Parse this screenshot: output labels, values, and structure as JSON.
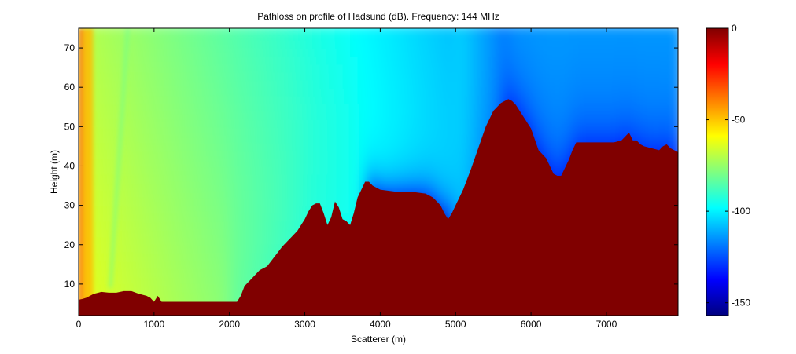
{
  "chart_data": {
    "type": "heatmap",
    "title": "Pathloss on profile of Hadsund (dB). Frequency: 144 MHz",
    "xlabel": "Scatterer (m)",
    "ylabel": "Height (m)",
    "xlim": [
      0,
      7950
    ],
    "ylim": [
      2,
      75
    ],
    "xticks": [
      0,
      1000,
      2000,
      3000,
      4000,
      5000,
      6000,
      7000
    ],
    "yticks": [
      10,
      20,
      30,
      40,
      50,
      60,
      70
    ],
    "colorbar": {
      "colormap": "jet",
      "range": [
        -157,
        0
      ],
      "ticks": [
        0,
        -50,
        -100,
        -150
      ],
      "terrain_color": "#800000"
    },
    "terrain_profile": {
      "x": [
        0,
        50,
        100,
        200,
        300,
        400,
        500,
        600,
        700,
        800,
        900,
        950,
        1000,
        1050,
        1100,
        1200,
        1500,
        1800,
        2000,
        2100,
        2150,
        2200,
        2250,
        2300,
        2400,
        2500,
        2600,
        2700,
        2800,
        2900,
        3000,
        3050,
        3100,
        3150,
        3200,
        3250,
        3300,
        3350,
        3400,
        3450,
        3500,
        3550,
        3600,
        3650,
        3700,
        3750,
        3800,
        3850,
        3900,
        4000,
        4200,
        4400,
        4600,
        4700,
        4800,
        4850,
        4900,
        4950,
        5000,
        5100,
        5200,
        5300,
        5400,
        5500,
        5600,
        5700,
        5750,
        5800,
        5850,
        5900,
        6000,
        6100,
        6200,
        6300,
        6350,
        6400,
        6450,
        6500,
        6550,
        6600,
        6700,
        6800,
        6900,
        7000,
        7100,
        7200,
        7300,
        7350,
        7400,
        7450,
        7500,
        7600,
        7700,
        7750,
        7800,
        7850,
        7950
      ],
      "height": [
        6,
        6.2,
        6.5,
        7.5,
        8,
        7.8,
        7.8,
        8.2,
        8.2,
        7.5,
        7,
        6.5,
        5.5,
        7,
        5.5,
        5.5,
        5.5,
        5.5,
        5.5,
        5.5,
        7,
        9.5,
        10.5,
        11.5,
        13.5,
        14.5,
        17,
        19.5,
        21.5,
        23.5,
        26.5,
        28.5,
        30,
        30.5,
        30.5,
        28,
        25,
        27,
        31,
        29.5,
        26.5,
        26,
        25,
        28,
        32,
        34,
        36,
        36,
        35,
        34,
        33.5,
        33.5,
        33,
        32,
        30,
        28,
        26.5,
        28,
        30,
        34,
        39,
        44.5,
        50,
        54,
        56,
        57,
        56.5,
        55.5,
        54,
        52.5,
        49.5,
        44,
        42,
        38,
        37.5,
        37.5,
        39.5,
        41.5,
        44,
        46,
        46,
        46,
        46,
        46,
        46,
        46.5,
        48.5,
        46.5,
        46.5,
        45.5,
        45,
        44.5,
        44,
        45,
        45.5,
        44.5,
        43.5
      ]
    }
  }
}
